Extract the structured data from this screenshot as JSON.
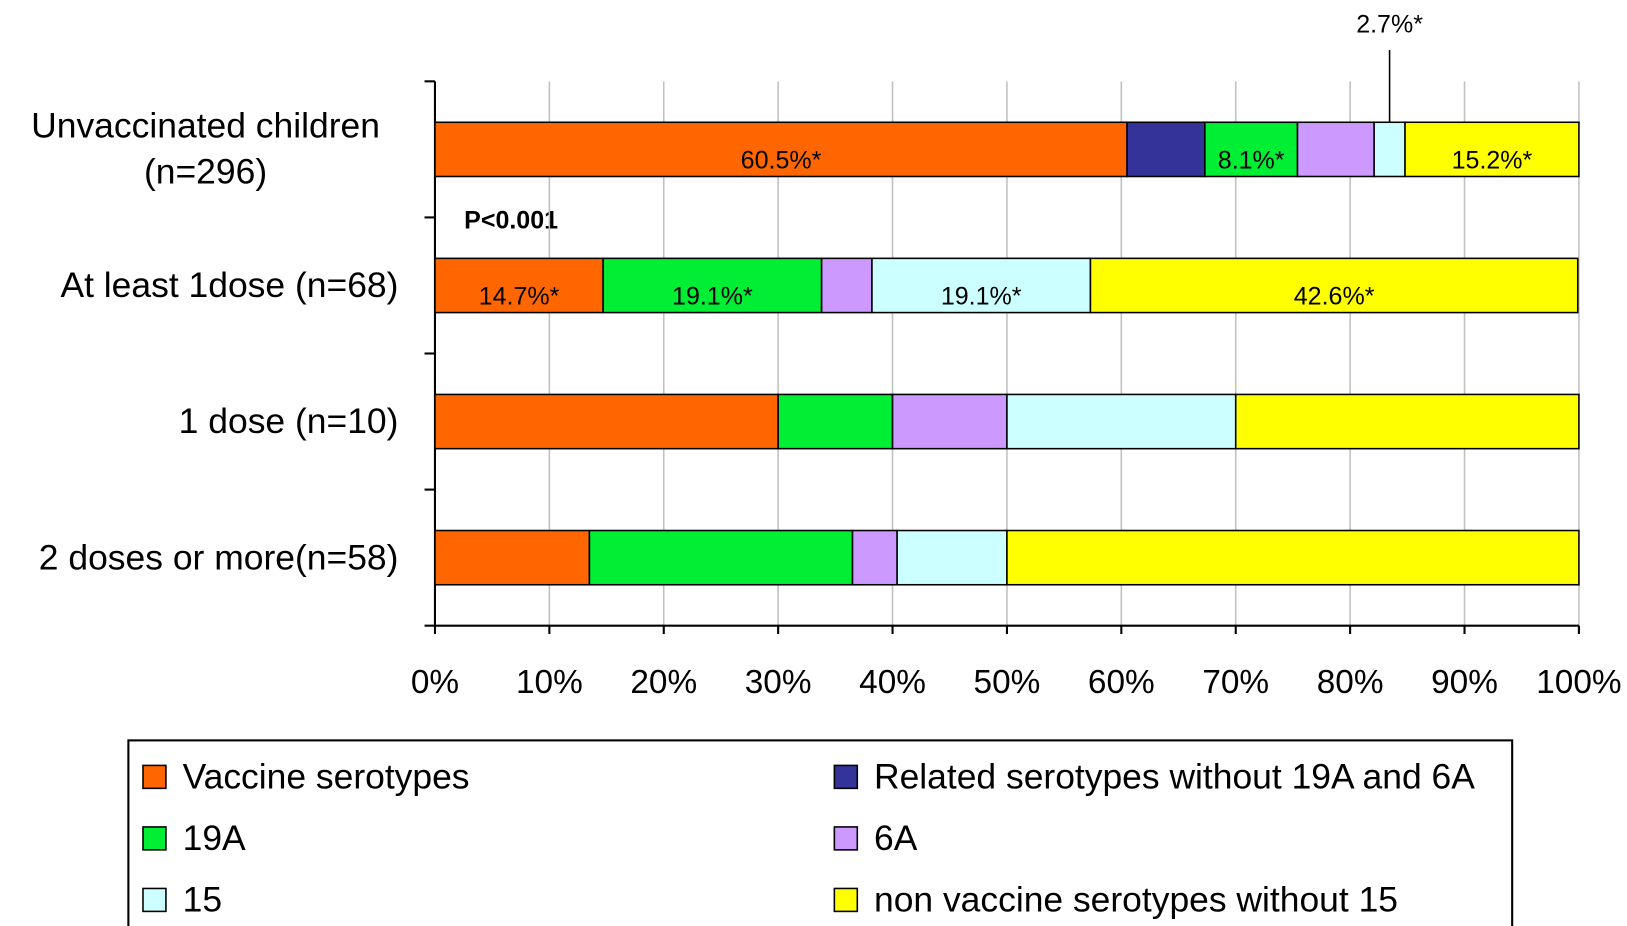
{
  "chart_data": {
    "type": "stacked_bar_horizontal",
    "categories": [
      "Unvaccinated children (n=296)",
      "At least 1dose (n=68)",
      "1 dose (n=10)",
      "2 doses  or more(n=58)"
    ],
    "series": [
      {
        "name": "Vaccine serotypes",
        "color": "#ff6600",
        "values": [
          60.5,
          14.7,
          30,
          13.5
        ],
        "value_labels": [
          "60.5%*",
          "14.7%*",
          null,
          null
        ]
      },
      {
        "name": "Related serotypes without 19A and 6A",
        "color": "#333399",
        "values": [
          6.8,
          0,
          0,
          0
        ],
        "value_labels": [
          null,
          null,
          null,
          null
        ]
      },
      {
        "name": "19A",
        "color": "#00ee33",
        "values": [
          8.1,
          19.1,
          10,
          23.0
        ],
        "value_labels": [
          "8.1%*",
          "19.1%*",
          null,
          null
        ]
      },
      {
        "name": "6A",
        "color": "#cc99ff",
        "values": [
          6.7,
          4.4,
          10,
          3.9
        ],
        "value_labels": [
          null,
          null,
          null,
          null
        ]
      },
      {
        "name": "15",
        "color": "#ccffff",
        "values": [
          2.7,
          19.1,
          20,
          9.6
        ],
        "value_labels": [
          "2.7%*",
          "19.1%*",
          null,
          null
        ]
      },
      {
        "name": "non vaccine serotypes without 15",
        "color": "#ffff00",
        "values": [
          15.2,
          42.6,
          30,
          50.0
        ],
        "value_labels": [
          "15.2%*",
          "42.6%*",
          null,
          null
        ]
      }
    ],
    "xlim": [
      0,
      100
    ],
    "xticks": [
      {
        "value": 0,
        "label": "0%"
      },
      {
        "value": 10,
        "label": "10%"
      },
      {
        "value": 20,
        "label": "20%"
      },
      {
        "value": 30,
        "label": "30%"
      },
      {
        "value": 40,
        "label": "40%"
      },
      {
        "value": 50,
        "label": "50%"
      },
      {
        "value": 60,
        "label": "60%"
      },
      {
        "value": 70,
        "label": "70%"
      },
      {
        "value": 80,
        "label": "80%"
      },
      {
        "value": 90,
        "label": "90%"
      },
      {
        "value": 100,
        "label": "100%"
      }
    ],
    "grid": true,
    "annotations": [
      "P<0.001"
    ],
    "legend": "bottom"
  }
}
